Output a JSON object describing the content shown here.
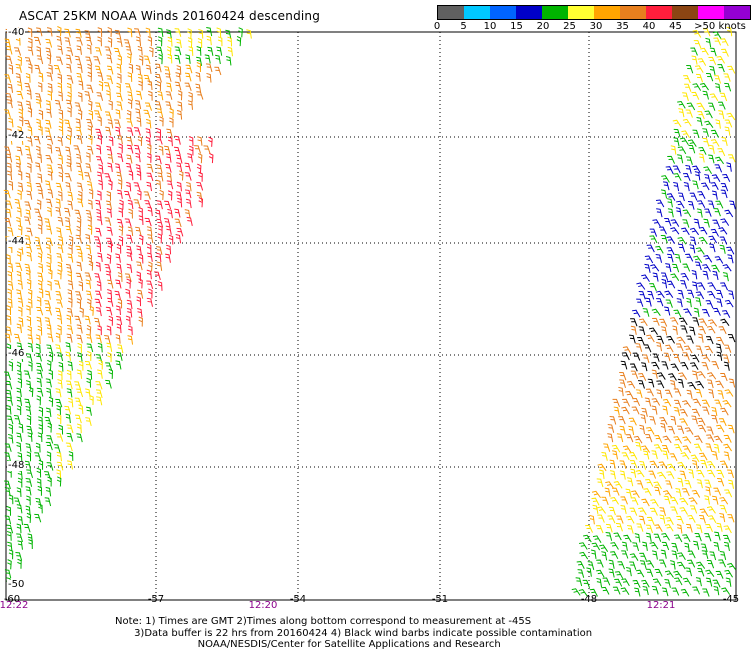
{
  "title": "ASCAT 25KM NOAA Winds 20160424 descending",
  "legend": {
    "labels": [
      "0",
      "5",
      "10",
      "15",
      "20",
      "25",
      "30",
      "35",
      "40",
      "45",
      ">50 knots"
    ],
    "colors": [
      "#606060",
      "#00c8ff",
      "#0064ff",
      "#0000c8",
      "#00b400",
      "#ffff32",
      "#ffa500",
      "#e87f1e",
      "#ff1e3c",
      "#8b4513",
      "#ff00ff",
      "#9400d3"
    ]
  },
  "lat_labels": [
    "-40",
    "-42",
    "-44",
    "-46",
    "-48",
    "-50"
  ],
  "lon_labels": [
    "-60",
    "-57",
    "-54",
    "-51",
    "-48",
    "-45"
  ],
  "time_labels": [
    "12:22",
    "12:20",
    "12:21"
  ],
  "notes": [
    "Note: 1) Times are GMT 2)Times along bottom correspond to measurement at -45S",
    "      3)Data buffer is 22 hrs from 20160424 4) Black wind barbs indicate possible contamination",
    "                          NOAA/NESDIS/Center for Satellite Applications and Research"
  ]
}
